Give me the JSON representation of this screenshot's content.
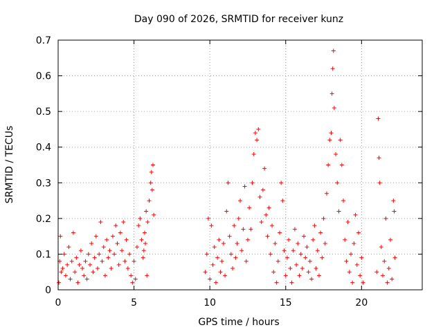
{
  "chart_data": {
    "type": "scatter",
    "title": "Day 090 of 2026, SRMTID for receiver kunz",
    "xlabel": "GPS time / hours",
    "ylabel": "SRMTID / TECUs",
    "xlim": [
      0,
      24
    ],
    "ylim": [
      0,
      0.7
    ],
    "xticks": [
      0,
      5,
      10,
      15,
      20
    ],
    "yticks": [
      0,
      0.1,
      0.2,
      0.3,
      0.4,
      0.5,
      0.6,
      0.7
    ],
    "xtick_labels": [
      "0",
      "5",
      "10",
      "15",
      "20"
    ],
    "ytick_labels": [
      "0",
      "0.1",
      "0.2",
      "0.3",
      "0.4",
      "0.5",
      "0.6",
      "0.7"
    ],
    "grid": true,
    "marker": "+",
    "color": "#ff0000",
    "series": [
      {
        "name": "SRMTID",
        "points": [
          [
            0.05,
            0.02
          ],
          [
            0.1,
            0.08
          ],
          [
            0.15,
            0.15
          ],
          [
            0.2,
            0.05
          ],
          [
            0.3,
            0.06
          ],
          [
            0.4,
            0.1
          ],
          [
            0.5,
            0.04
          ],
          [
            0.6,
            0.07
          ],
          [
            0.7,
            0.12
          ],
          [
            0.8,
            0.03
          ],
          [
            0.9,
            0.08
          ],
          [
            1.0,
            0.16
          ],
          [
            1.1,
            0.05
          ],
          [
            1.2,
            0.09
          ],
          [
            1.3,
            0.02
          ],
          [
            1.4,
            0.07
          ],
          [
            1.5,
            0.11
          ],
          [
            1.6,
            0.06
          ],
          [
            1.7,
            0.04
          ],
          [
            1.8,
            0.08
          ],
          [
            1.9,
            0.03
          ],
          [
            2.0,
            0.1
          ],
          [
            2.1,
            0.07
          ],
          [
            2.2,
            0.13
          ],
          [
            2.3,
            0.05
          ],
          [
            2.4,
            0.09
          ],
          [
            2.5,
            0.15
          ],
          [
            2.6,
            0.06
          ],
          [
            2.7,
            0.1
          ],
          [
            2.8,
            0.19
          ],
          [
            2.9,
            0.08
          ],
          [
            3.0,
            0.12
          ],
          [
            3.1,
            0.04
          ],
          [
            3.2,
            0.14
          ],
          [
            3.3,
            0.09
          ],
          [
            3.4,
            0.11
          ],
          [
            3.5,
            0.06
          ],
          [
            3.6,
            0.15
          ],
          [
            3.7,
            0.1
          ],
          [
            3.8,
            0.18
          ],
          [
            3.9,
            0.13
          ],
          [
            4.0,
            0.07
          ],
          [
            4.1,
            0.16
          ],
          [
            4.2,
            0.11
          ],
          [
            4.3,
            0.19
          ],
          [
            4.4,
            0.08
          ],
          [
            4.5,
            0.14
          ],
          [
            4.6,
            0.06
          ],
          [
            4.7,
            0.1
          ],
          [
            4.8,
            0.04
          ],
          [
            4.9,
            0.02
          ],
          [
            5.0,
            0.08
          ],
          [
            5.1,
            0.03
          ],
          [
            5.2,
            0.12
          ],
          [
            5.3,
            0.18
          ],
          [
            5.4,
            0.2
          ],
          [
            5.5,
            0.14
          ],
          [
            5.6,
            0.09
          ],
          [
            5.7,
            0.16
          ],
          [
            5.8,
            0.22
          ],
          [
            5.9,
            0.19
          ],
          [
            6.0,
            0.25
          ],
          [
            6.1,
            0.3
          ],
          [
            6.15,
            0.33
          ],
          [
            6.2,
            0.28
          ],
          [
            6.25,
            0.35
          ],
          [
            6.3,
            0.21
          ],
          [
            5.65,
            0.11
          ],
          [
            5.75,
            0.13
          ],
          [
            5.85,
            0.04
          ],
          [
            9.7,
            0.05
          ],
          [
            9.8,
            0.1
          ],
          [
            9.9,
            0.2
          ],
          [
            10.0,
            0.03
          ],
          [
            10.1,
            0.18
          ],
          [
            10.2,
            0.07
          ],
          [
            10.3,
            0.12
          ],
          [
            10.4,
            0.02
          ],
          [
            10.5,
            0.09
          ],
          [
            10.6,
            0.14
          ],
          [
            10.7,
            0.05
          ],
          [
            10.8,
            0.08
          ],
          [
            10.9,
            0.13
          ],
          [
            11.0,
            0.04
          ],
          [
            11.1,
            0.22
          ],
          [
            11.2,
            0.3
          ],
          [
            11.3,
            0.15
          ],
          [
            11.4,
            0.1
          ],
          [
            11.5,
            0.06
          ],
          [
            11.6,
            0.18
          ],
          [
            11.7,
            0.09
          ],
          [
            11.8,
            0.13
          ],
          [
            11.9,
            0.2
          ],
          [
            12.0,
            0.25
          ],
          [
            12.1,
            0.11
          ],
          [
            12.2,
            0.17
          ],
          [
            12.3,
            0.29
          ],
          [
            12.4,
            0.08
          ],
          [
            12.5,
            0.14
          ],
          [
            12.6,
            0.23
          ],
          [
            12.7,
            0.17
          ],
          [
            12.8,
            0.3
          ],
          [
            12.9,
            0.38
          ],
          [
            13.0,
            0.44
          ],
          [
            13.1,
            0.42
          ],
          [
            13.2,
            0.45
          ],
          [
            13.3,
            0.26
          ],
          [
            13.4,
            0.19
          ],
          [
            13.5,
            0.28
          ],
          [
            13.6,
            0.34
          ],
          [
            13.7,
            0.21
          ],
          [
            13.8,
            0.15
          ],
          [
            13.9,
            0.23
          ],
          [
            14.0,
            0.1
          ],
          [
            14.1,
            0.18
          ],
          [
            14.2,
            0.05
          ],
          [
            14.3,
            0.13
          ],
          [
            14.4,
            0.02
          ],
          [
            14.5,
            0.08
          ],
          [
            14.6,
            0.16
          ],
          [
            14.7,
            0.3
          ],
          [
            14.8,
            0.25
          ],
          [
            14.9,
            0.11
          ],
          [
            15.0,
            0.04
          ],
          [
            15.1,
            0.09
          ],
          [
            15.2,
            0.14
          ],
          [
            15.3,
            0.06
          ],
          [
            15.4,
            0.02
          ],
          [
            15.5,
            0.11
          ],
          [
            15.6,
            0.17
          ],
          [
            15.7,
            0.07
          ],
          [
            15.8,
            0.13
          ],
          [
            15.9,
            0.04
          ],
          [
            16.0,
            0.1
          ],
          [
            16.1,
            0.06
          ],
          [
            16.2,
            0.15
          ],
          [
            16.3,
            0.09
          ],
          [
            16.4,
            0.12
          ],
          [
            16.5,
            0.05
          ],
          [
            16.6,
            0.08
          ],
          [
            16.7,
            0.03
          ],
          [
            16.8,
            0.14
          ],
          [
            16.9,
            0.18
          ],
          [
            17.0,
            0.06
          ],
          [
            17.1,
            0.11
          ],
          [
            17.2,
            0.04
          ],
          [
            17.3,
            0.16
          ],
          [
            17.4,
            0.09
          ],
          [
            17.5,
            0.2
          ],
          [
            17.6,
            0.13
          ],
          [
            17.7,
            0.27
          ],
          [
            17.8,
            0.35
          ],
          [
            17.9,
            0.42
          ],
          [
            18.0,
            0.44
          ],
          [
            18.05,
            0.55
          ],
          [
            18.1,
            0.62
          ],
          [
            18.15,
            0.67
          ],
          [
            18.2,
            0.51
          ],
          [
            18.3,
            0.38
          ],
          [
            18.4,
            0.3
          ],
          [
            18.5,
            0.22
          ],
          [
            18.6,
            0.42
          ],
          [
            18.7,
            0.35
          ],
          [
            18.8,
            0.25
          ],
          [
            18.9,
            0.14
          ],
          [
            19.0,
            0.08
          ],
          [
            19.1,
            0.19
          ],
          [
            19.2,
            0.05
          ],
          [
            19.3,
            0.1
          ],
          [
            19.4,
            0.02
          ],
          [
            19.5,
            0.13
          ],
          [
            19.6,
            0.21
          ],
          [
            19.7,
            0.07
          ],
          [
            19.8,
            0.16
          ],
          [
            19.9,
            0.04
          ],
          [
            20.0,
            0.09
          ],
          [
            20.1,
            0.02
          ],
          [
            21.0,
            0.05
          ],
          [
            21.1,
            0.48
          ],
          [
            21.15,
            0.37
          ],
          [
            21.2,
            0.3
          ],
          [
            21.3,
            0.12
          ],
          [
            21.4,
            0.04
          ],
          [
            21.5,
            0.08
          ],
          [
            21.6,
            0.2
          ],
          [
            21.7,
            0.02
          ],
          [
            21.8,
            0.06
          ],
          [
            21.9,
            0.14
          ],
          [
            22.0,
            0.03
          ],
          [
            22.1,
            0.25
          ],
          [
            22.15,
            0.22
          ],
          [
            22.2,
            0.09
          ]
        ]
      }
    ]
  }
}
